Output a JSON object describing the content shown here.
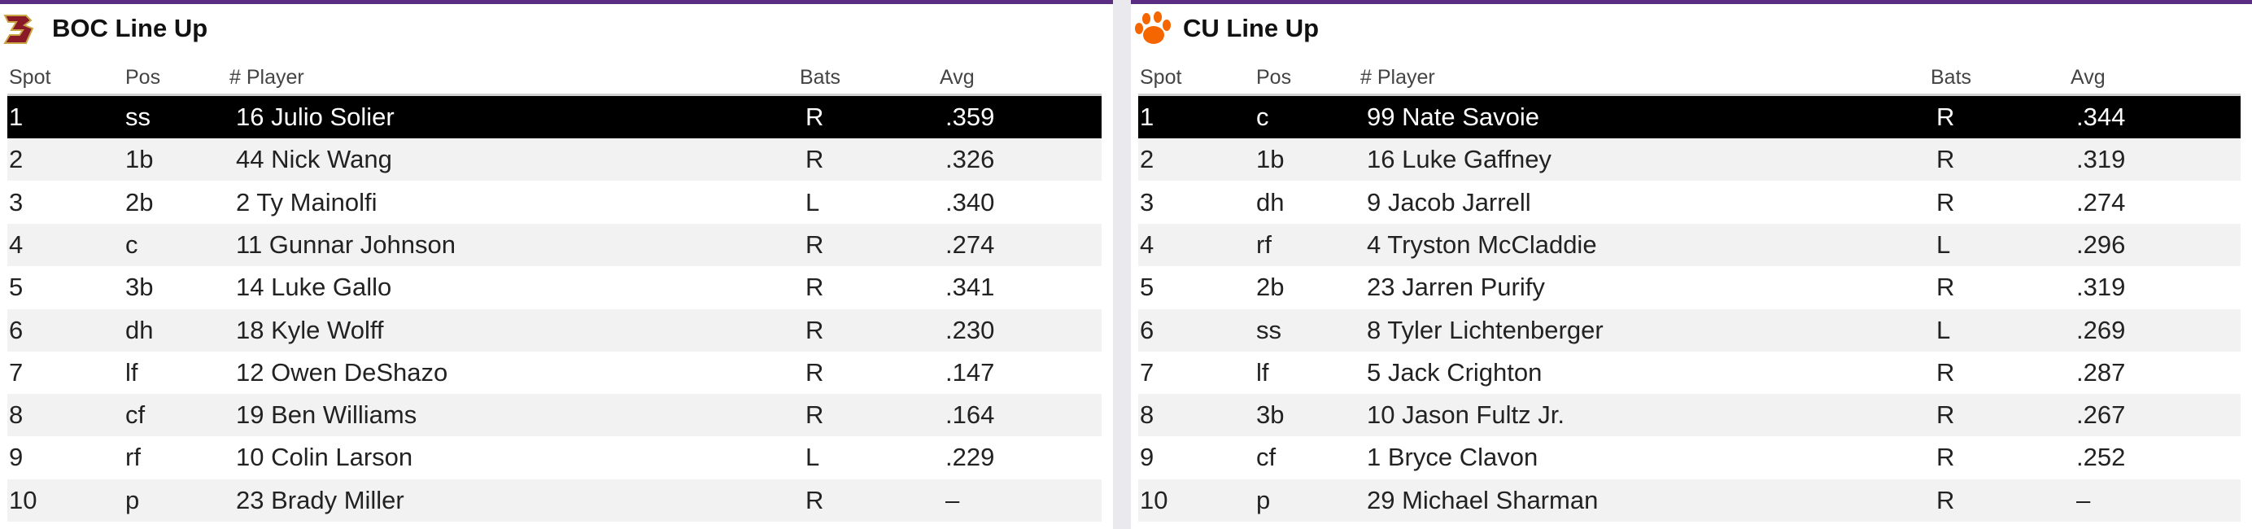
{
  "panels": [
    {
      "title": "BOC Line Up",
      "columns": [
        "Spot",
        "Pos",
        "# Player",
        "Bats",
        "Avg"
      ],
      "rows": [
        [
          "1",
          "ss",
          "16 Julio Solier",
          "R",
          ".359"
        ],
        [
          "2",
          "1b",
          "44 Nick Wang",
          "R",
          ".326"
        ],
        [
          "3",
          "2b",
          "2 Ty Mainolfi",
          "L",
          ".340"
        ],
        [
          "4",
          "c",
          "11 Gunnar Johnson",
          "R",
          ".274"
        ],
        [
          "5",
          "3b",
          "14 Luke Gallo",
          "R",
          ".341"
        ],
        [
          "6",
          "dh",
          "18 Kyle Wolff",
          "R",
          ".230"
        ],
        [
          "7",
          "lf",
          "12 Owen DeShazo",
          "R",
          ".147"
        ],
        [
          "8",
          "cf",
          "19 Ben Williams",
          "R",
          ".164"
        ],
        [
          "9",
          "rf",
          "10 Colin Larson",
          "L",
          ".229"
        ],
        [
          "10",
          "p",
          "23 Brady Miller",
          "R",
          "–"
        ]
      ]
    },
    {
      "title": "CU Line Up",
      "columns": [
        "Spot",
        "Pos",
        "# Player",
        "Bats",
        "Avg"
      ],
      "rows": [
        [
          "1",
          "c",
          "99 Nate Savoie",
          "R",
          ".344"
        ],
        [
          "2",
          "1b",
          "16 Luke Gaffney",
          "R",
          ".319"
        ],
        [
          "3",
          "dh",
          "9 Jacob Jarrell",
          "R",
          ".274"
        ],
        [
          "4",
          "rf",
          "4 Tryston McCladdie",
          "L",
          ".296"
        ],
        [
          "5",
          "2b",
          "23 Jarren Purify",
          "R",
          ".319"
        ],
        [
          "6",
          "ss",
          "8 Tyler Lichtenberger",
          "L",
          ".269"
        ],
        [
          "7",
          "lf",
          "5 Jack Crighton",
          "R",
          ".287"
        ],
        [
          "8",
          "3b",
          "10 Jason Fultz Jr.",
          "R",
          ".267"
        ],
        [
          "9",
          "cf",
          "1 Bryce Clavon",
          "R",
          ".252"
        ],
        [
          "10",
          "p",
          "29 Michael Sharman",
          "R",
          "–"
        ]
      ]
    }
  ]
}
